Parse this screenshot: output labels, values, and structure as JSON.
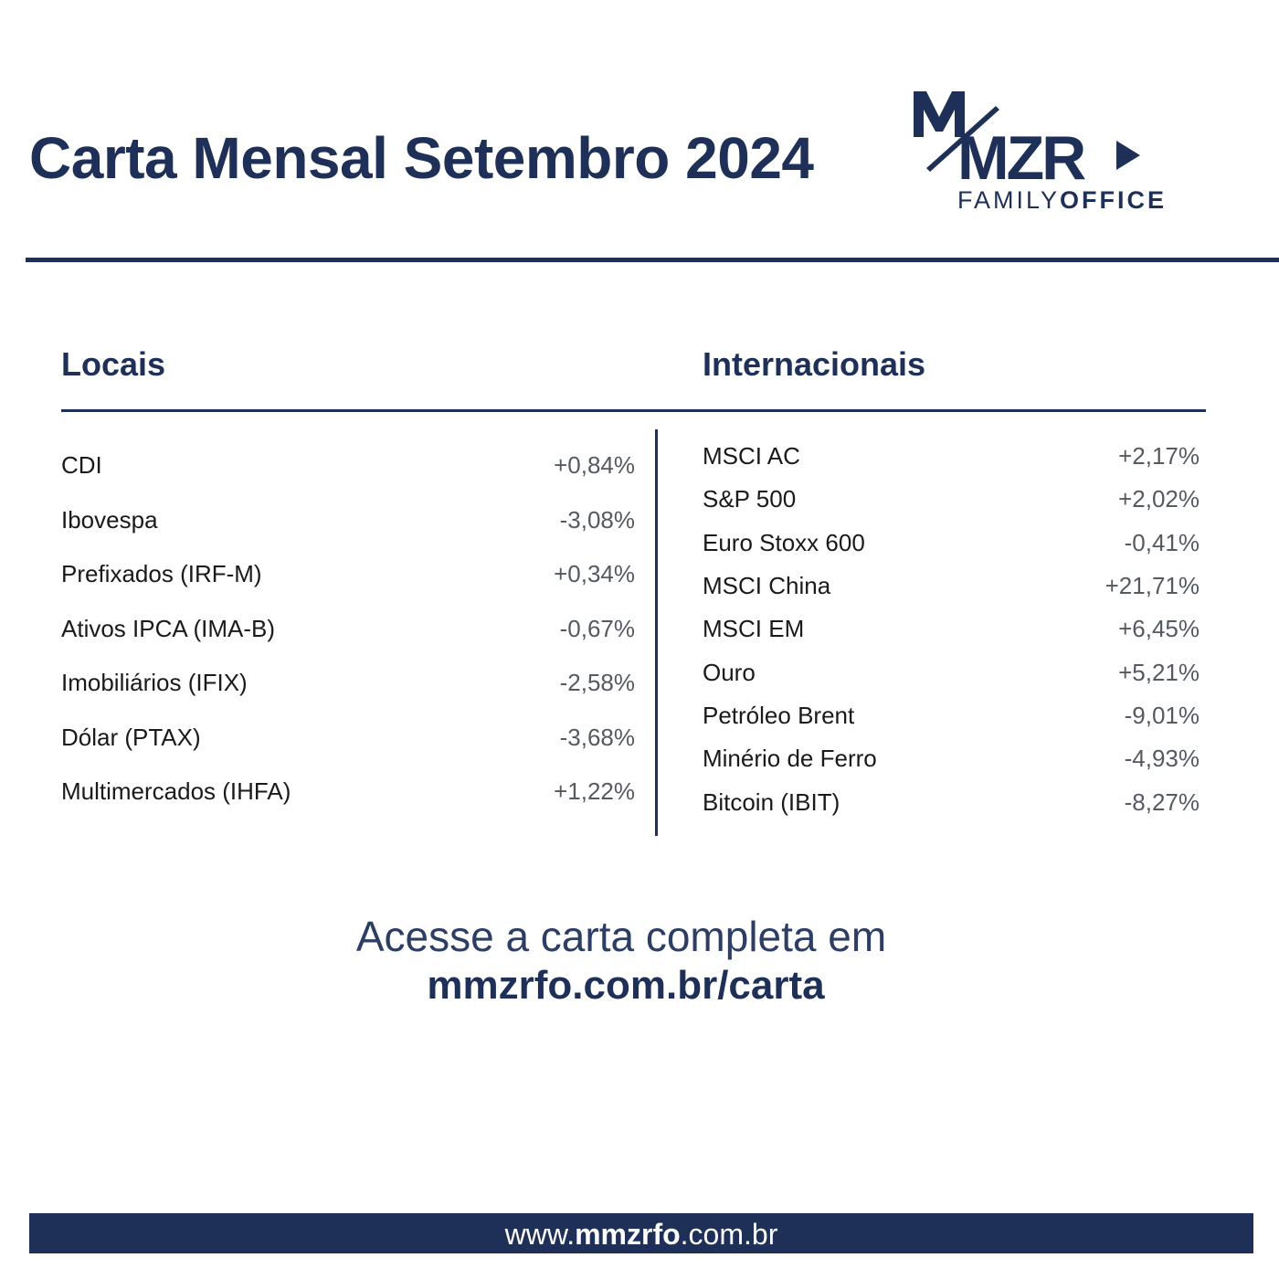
{
  "header": {
    "title": "Carta Mensal Setembro 2024",
    "logo": {
      "mark": "MMZR",
      "word_regular": "FAMILY",
      "word_bold": "OFFICE"
    }
  },
  "locais": {
    "heading": "Locais",
    "items": [
      {
        "name": "CDI",
        "value": "+0,84%"
      },
      {
        "name": "Ibovespa",
        "value": "-3,08%"
      },
      {
        "name": "Prefixados (IRF-M)",
        "value": "+0,34%"
      },
      {
        "name": "Ativos IPCA (IMA-B)",
        "value": "-0,67%"
      },
      {
        "name": "Imobiliários (IFIX)",
        "value": "-2,58%"
      },
      {
        "name": "Dólar (PTAX)",
        "value": "-3,68%"
      },
      {
        "name": "Multimercados (IHFA)",
        "value": "+1,22%"
      }
    ]
  },
  "internacionais": {
    "heading": "Internacionais",
    "items": [
      {
        "name": "MSCI AC",
        "value": "+2,17%"
      },
      {
        "name": "S&P 500",
        "value": "+2,02%"
      },
      {
        "name": "Euro Stoxx 600",
        "value": "-0,41%"
      },
      {
        "name": "MSCI China",
        "value": "+21,71%"
      },
      {
        "name": "MSCI EM",
        "value": "+6,45%"
      },
      {
        "name": "Ouro",
        "value": "+5,21%"
      },
      {
        "name": "Petróleo Brent",
        "value": "-9,01%"
      },
      {
        "name": "Minério de Ferro",
        "value": "-4,93%"
      },
      {
        "name": "Bitcoin (IBIT)",
        "value": "-8,27%"
      }
    ]
  },
  "cta": {
    "line1": "Acesse a carta completa em",
    "line2": "mmzrfo.com.br/carta"
  },
  "footer": {
    "prefix": "www.",
    "bold": "mmzrfo",
    "suffix": ".com.br"
  },
  "colors": {
    "navy": "#1e3057",
    "value_gray": "#555a61"
  }
}
